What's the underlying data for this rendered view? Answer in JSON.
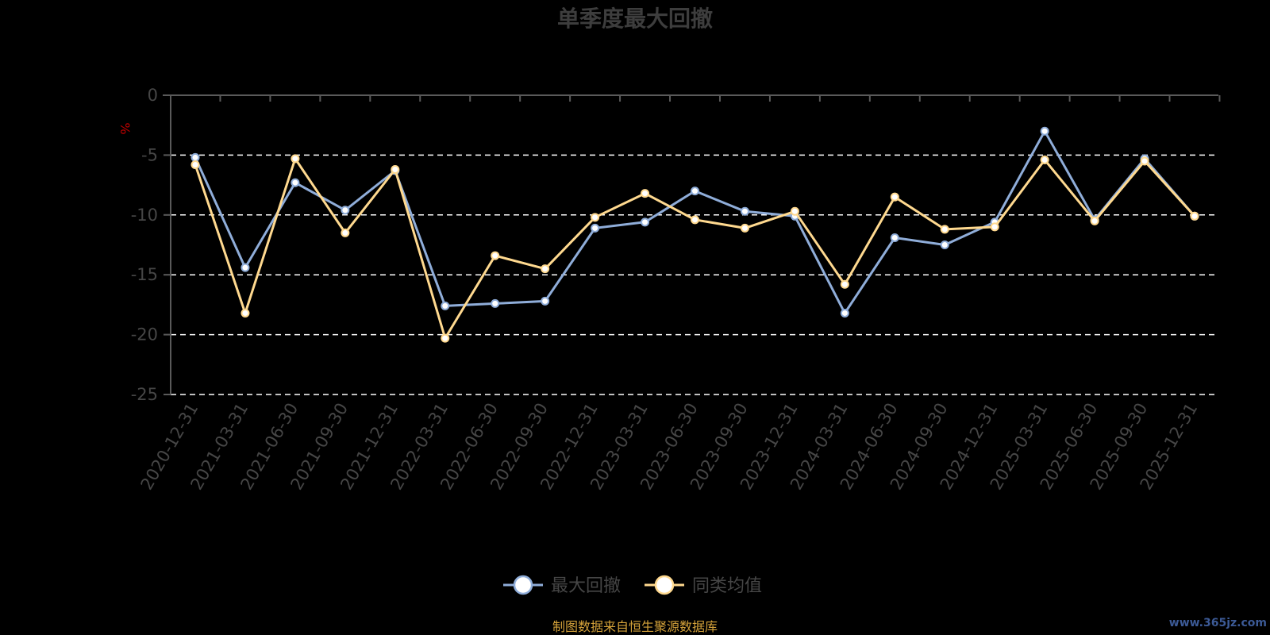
{
  "chart_data": {
    "type": "line",
    "title": "单季度最大回撤",
    "ylabel": "%",
    "xlabel": "",
    "ylim": [
      -25,
      0
    ],
    "yticks": [
      0,
      -5,
      -10,
      -15,
      -20,
      -25
    ],
    "grid": "dashed horizontal lines",
    "legend_position": "bottom-center",
    "categories": [
      "2020-12-31",
      "2021-03-31",
      "2021-06-30",
      "2021-09-30",
      "2021-12-31",
      "2022-03-31",
      "2022-06-30",
      "2022-09-30",
      "2022-12-31",
      "2023-03-31",
      "2023-06-30",
      "2023-09-30",
      "2023-12-31",
      "2024-03-31",
      "2024-06-30",
      "2024-09-30",
      "2024-12-31",
      "2025-03-31",
      "2025-06-30",
      "2025-09-30",
      "2025-12-31"
    ],
    "series": [
      {
        "name": "最大回撤",
        "color": "#8fadd9",
        "values": [
          -5.2,
          -14.4,
          -7.3,
          -9.6,
          -6.3,
          -17.6,
          -17.4,
          -17.2,
          -11.1,
          -10.6,
          -8.0,
          -9.7,
          -10.1,
          -18.2,
          -11.9,
          -12.5,
          -10.6,
          -3.0,
          -10.4,
          -5.3,
          -10.1
        ]
      },
      {
        "name": "同类均值",
        "color": "#ffd98f",
        "values": [
          -5.8,
          -18.2,
          -5.3,
          -11.5,
          -6.2,
          -20.3,
          -13.4,
          -14.5,
          -10.2,
          -8.2,
          -10.4,
          -11.1,
          -9.7,
          -15.8,
          -8.5,
          -11.2,
          -11.0,
          -5.4,
          -10.5,
          -5.5,
          -10.1
        ]
      }
    ]
  },
  "footer": {
    "source": "制图数据来自恒生聚源数据库",
    "watermark": "www.365jz.com"
  },
  "colors": {
    "background": "#000000",
    "axis": "#5a5a5a",
    "grid": "#ffffff",
    "text": "#464646",
    "unit": "#c00000",
    "source": "#d4a23a"
  }
}
